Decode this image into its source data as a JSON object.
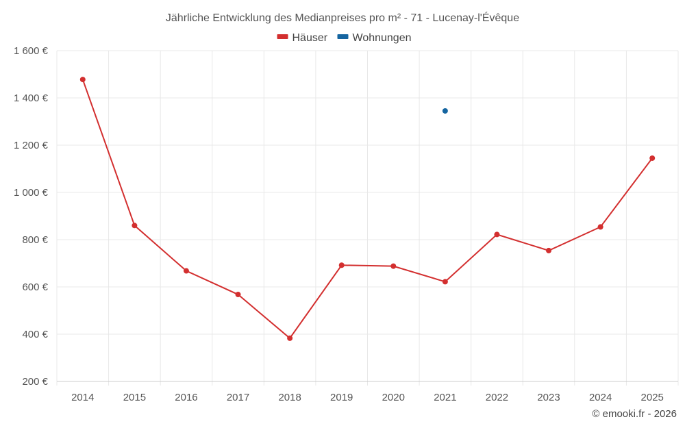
{
  "chart_data": {
    "type": "line",
    "title": "Jährliche Entwicklung des Medianpreises pro m² - 71 - Lucenay-l'Évêque",
    "categories": [
      "2014",
      "2015",
      "2016",
      "2017",
      "2018",
      "2019",
      "2020",
      "2021",
      "2022",
      "2023",
      "2024",
      "2025"
    ],
    "series": [
      {
        "name": "Häuser",
        "color": "#d32f2f",
        "values": [
          1478,
          860,
          668,
          568,
          383,
          692,
          688,
          622,
          822,
          754,
          854,
          1145
        ]
      },
      {
        "name": "Wohnungen",
        "color": "#1565a0",
        "values": [
          null,
          null,
          null,
          null,
          null,
          null,
          null,
          1345,
          null,
          null,
          null,
          null
        ]
      }
    ],
    "ylim": [
      200,
      1600
    ],
    "yticks": [
      200,
      400,
      600,
      800,
      1000,
      1200,
      1400,
      1600
    ],
    "ytick_labels": [
      "200 €",
      "400 €",
      "600 €",
      "800 €",
      "1 000 €",
      "1 200 €",
      "1 400 €",
      "1 600 €"
    ],
    "xlabel": "",
    "ylabel": "",
    "grid": true,
    "legend_position": "top-center"
  },
  "credit": "© emooki.fr - 2026"
}
